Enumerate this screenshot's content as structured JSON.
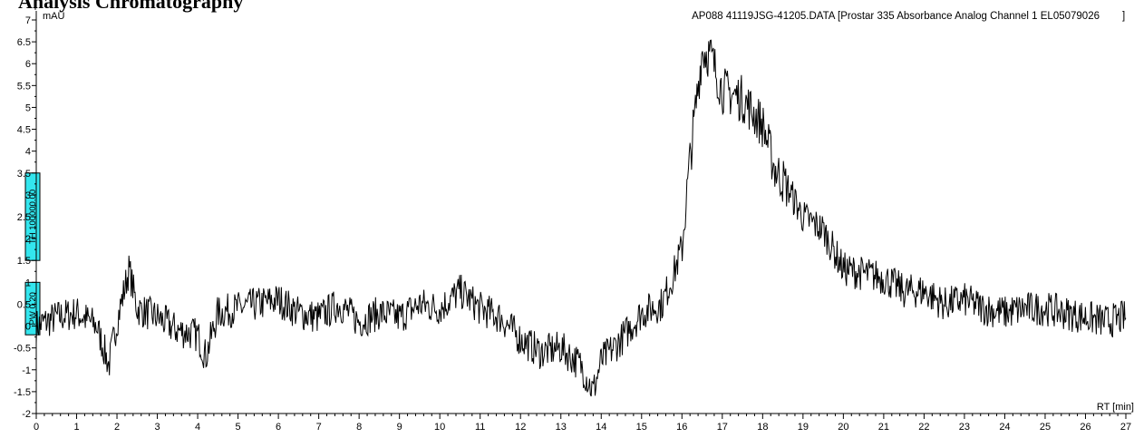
{
  "heading": "Analysis Chromatography",
  "chart_data": {
    "type": "line",
    "file_label": "AP088 41119JSG-41205.DATA [Prostar 335 Absorbance Analog Channel 1 EL05079026",
    "file_label_end": "]",
    "ylabel": "mAU",
    "xlabel": "RT [min]",
    "xlim": [
      0,
      27
    ],
    "ylim": [
      -2,
      7
    ],
    "x_ticks": [
      0,
      1,
      2,
      3,
      4,
      5,
      6,
      7,
      8,
      9,
      10,
      11,
      12,
      13,
      14,
      15,
      16,
      17,
      18,
      19,
      20,
      21,
      22,
      23,
      24,
      25,
      26,
      27
    ],
    "y_ticks": [
      -2,
      -1.5,
      -1,
      -0.5,
      0,
      0.5,
      1,
      1.5,
      2,
      2.5,
      3,
      3.5,
      4,
      4.5,
      5,
      5.5,
      6,
      6.5,
      7
    ],
    "y_tick_labels": [
      "-2",
      "-1.5",
      "-1",
      "-0.5",
      "0",
      "0.5",
      "1",
      "1.5",
      "2",
      "2.5",
      "3",
      "3.5",
      "4",
      "4.5",
      "5",
      "5.5",
      "6",
      "6.5",
      "7"
    ],
    "markers": [
      {
        "label": "TH 100000.00",
        "y_from": 1.5,
        "y_to": 3.5,
        "color": "#33e6ee"
      },
      {
        "label": "PW 0.20",
        "y_from": -0.2,
        "y_to": 1.0,
        "color": "#33e6ee"
      }
    ],
    "line_color": "#000000",
    "series": [
      {
        "x": [
          0,
          0.5,
          1,
          1.5,
          1.8,
          2,
          2.3,
          2.5,
          3,
          3.5,
          4,
          4.2,
          4.5,
          5,
          5.5,
          6,
          6.5,
          7,
          7.5,
          8,
          8.5,
          9,
          9.5,
          10,
          10.5,
          11,
          11.5,
          12,
          12.5,
          13,
          13.5,
          13.8,
          14,
          14.5,
          15,
          15.5,
          15.8,
          16,
          16.2,
          16.5,
          16.7,
          17,
          17.5,
          18,
          18.3,
          18.6,
          19,
          19.5,
          20,
          20.5,
          21,
          21.5,
          22,
          22.5,
          23,
          23.5,
          24,
          24.5,
          25,
          25.5,
          26,
          26.5,
          27
        ],
        "y": [
          0,
          0.2,
          0.3,
          0,
          -0.9,
          0.1,
          1.3,
          0.4,
          0.2,
          -0.1,
          -0.2,
          -0.7,
          0.3,
          0.4,
          0.5,
          0.6,
          0.3,
          0.2,
          0.5,
          0.1,
          0.3,
          0.2,
          0.5,
          0.4,
          0.8,
          0.4,
          0.2,
          -0.3,
          -0.6,
          -0.5,
          -0.9,
          -1.5,
          -0.8,
          -0.3,
          0.3,
          0.5,
          1.2,
          1.8,
          3.8,
          6.3,
          6.2,
          5.4,
          5.2,
          4.6,
          3.6,
          3.2,
          2.5,
          2.2,
          1.3,
          1.2,
          1.1,
          0.8,
          0.8,
          0.5,
          0.6,
          0.4,
          0.3,
          0.4,
          0.4,
          0.3,
          0.2,
          0.1,
          0.2
        ]
      }
    ]
  }
}
